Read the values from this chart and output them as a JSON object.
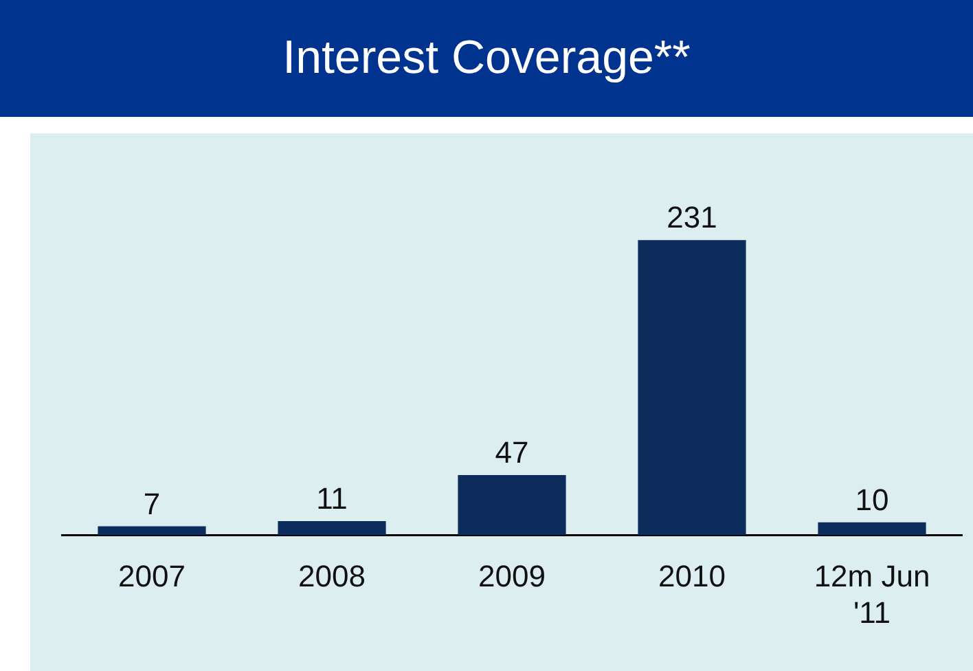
{
  "chart_data": {
    "type": "bar",
    "title": "Interest Coverage**",
    "categories": [
      "2007",
      "2008",
      "2009",
      "2010",
      "12m Jun '11"
    ],
    "values": [
      7,
      11,
      47,
      231,
      10
    ],
    "color": "#0c2d5c",
    "data_labels": true,
    "grid": false,
    "legend": false
  }
}
